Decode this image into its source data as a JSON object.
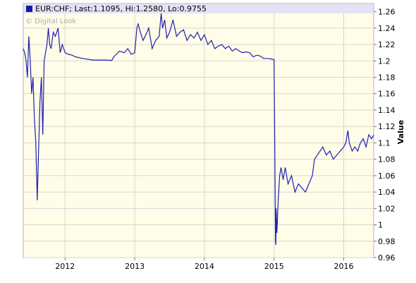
{
  "chart_data": {
    "type": "line",
    "legend": "EUR:CHF; Last:1.1095, Hi:1.2580, Lo:0.9755",
    "credit": "© Digital Look",
    "ylabel": "Value",
    "xlim": [
      2011.4,
      2016.43
    ],
    "ylim": [
      0.96,
      1.27
    ],
    "x_ticks": [
      {
        "value": 2012,
        "label": "2012"
      },
      {
        "value": 2013,
        "label": "2013"
      },
      {
        "value": 2014,
        "label": "2014"
      },
      {
        "value": 2015,
        "label": "2015"
      },
      {
        "value": 2016,
        "label": "2016"
      }
    ],
    "y_ticks": [
      {
        "value": 0.96,
        "label": "0.96"
      },
      {
        "value": 0.98,
        "label": "0.98"
      },
      {
        "value": 1.0,
        "label": "1"
      },
      {
        "value": 1.02,
        "label": "1.02"
      },
      {
        "value": 1.04,
        "label": "1.04"
      },
      {
        "value": 1.06,
        "label": "1.06"
      },
      {
        "value": 1.08,
        "label": "1.08"
      },
      {
        "value": 1.1,
        "label": "1.1"
      },
      {
        "value": 1.12,
        "label": "1.12"
      },
      {
        "value": 1.14,
        "label": "1.14"
      },
      {
        "value": 1.16,
        "label": "1.16"
      },
      {
        "value": 1.18,
        "label": "1.18"
      },
      {
        "value": 1.2,
        "label": "1.2"
      },
      {
        "value": 1.22,
        "label": "1.22"
      },
      {
        "value": 1.24,
        "label": "1.24"
      },
      {
        "value": 1.26,
        "label": "1.26"
      }
    ],
    "grid": true,
    "series": [
      {
        "color": "#2020b0",
        "x": [
          2011.4,
          2011.42,
          2011.44,
          2011.46,
          2011.48,
          2011.5,
          2011.52,
          2011.54,
          2011.56,
          2011.58,
          2011.6,
          2011.62,
          2011.64,
          2011.66,
          2011.68,
          2011.7,
          2011.72,
          2011.74,
          2011.76,
          2011.78,
          2011.8,
          2011.83,
          2011.86,
          2011.9,
          2011.93,
          2011.96,
          2012.0,
          2012.05,
          2012.1,
          2012.15,
          2012.25,
          2012.4,
          2012.6,
          2012.67,
          2012.7,
          2012.78,
          2012.85,
          2012.9,
          2012.95,
          2013.0,
          2013.03,
          2013.05,
          2013.08,
          2013.12,
          2013.15,
          2013.2,
          2013.25,
          2013.3,
          2013.35,
          2013.38,
          2013.4,
          2013.43,
          2013.46,
          2013.5,
          2013.55,
          2013.6,
          2013.65,
          2013.7,
          2013.75,
          2013.8,
          2013.85,
          2013.9,
          2013.95,
          2014.0,
          2014.05,
          2014.1,
          2014.15,
          2014.2,
          2014.25,
          2014.3,
          2014.35,
          2014.4,
          2014.45,
          2014.5,
          2014.55,
          2014.6,
          2014.65,
          2014.7,
          2014.75,
          2014.8,
          2014.85,
          2014.9,
          2014.95,
          2015.0,
          2015.01,
          2015.02,
          2015.025,
          2015.03,
          2015.04,
          2015.06,
          2015.08,
          2015.1,
          2015.13,
          2015.16,
          2015.2,
          2015.25,
          2015.3,
          2015.35,
          2015.4,
          2015.45,
          2015.5,
          2015.55,
          2015.58,
          2015.62,
          2015.66,
          2015.7,
          2015.75,
          2015.8,
          2015.85,
          2015.9,
          2015.95,
          2016.0,
          2016.03,
          2016.06,
          2016.08,
          2016.12,
          2016.16,
          2016.2,
          2016.24,
          2016.28,
          2016.32,
          2016.36,
          2016.4,
          2016.43
        ],
        "y": [
          1.215,
          1.21,
          1.2,
          1.18,
          1.23,
          1.2,
          1.16,
          1.18,
          1.13,
          1.1,
          1.03,
          1.09,
          1.15,
          1.18,
          1.11,
          1.2,
          1.21,
          1.22,
          1.24,
          1.22,
          1.215,
          1.235,
          1.23,
          1.24,
          1.21,
          1.22,
          1.21,
          1.208,
          1.207,
          1.205,
          1.203,
          1.201,
          1.201,
          1.2005,
          1.205,
          1.212,
          1.21,
          1.215,
          1.208,
          1.21,
          1.24,
          1.245,
          1.235,
          1.225,
          1.23,
          1.24,
          1.215,
          1.225,
          1.23,
          1.258,
          1.24,
          1.25,
          1.228,
          1.235,
          1.25,
          1.23,
          1.235,
          1.238,
          1.225,
          1.232,
          1.228,
          1.235,
          1.225,
          1.232,
          1.22,
          1.225,
          1.215,
          1.218,
          1.22,
          1.215,
          1.218,
          1.212,
          1.215,
          1.212,
          1.21,
          1.211,
          1.21,
          1.205,
          1.207,
          1.206,
          1.203,
          1.203,
          1.2025,
          1.2015,
          1.1,
          0.98,
          0.9755,
          1.02,
          0.99,
          1.03,
          1.06,
          1.07,
          1.055,
          1.07,
          1.05,
          1.06,
          1.04,
          1.05,
          1.045,
          1.04,
          1.05,
          1.06,
          1.08,
          1.085,
          1.09,
          1.095,
          1.085,
          1.09,
          1.08,
          1.085,
          1.09,
          1.095,
          1.1,
          1.115,
          1.1,
          1.09,
          1.095,
          1.09,
          1.1,
          1.105,
          1.095,
          1.11,
          1.105,
          1.1095
        ]
      }
    ]
  }
}
